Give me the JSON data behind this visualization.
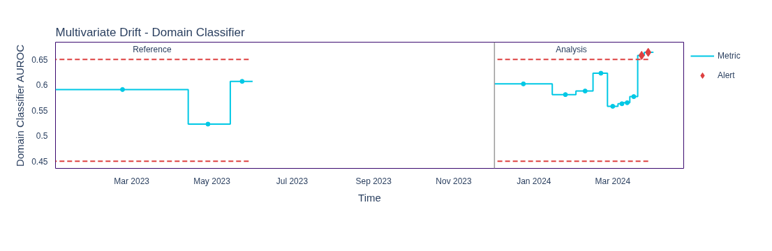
{
  "chart_data": {
    "type": "step",
    "title": "Multivariate Drift - Domain Classifier",
    "xlabel": "Time",
    "ylabel": "Domain Classifier AUROC",
    "xlim": [
      "2023-01-02",
      "2024-04-24"
    ],
    "ylim": [
      0.436,
      0.684
    ],
    "xticks": [
      {
        "value": "2023-03-01",
        "label": "Mar 2023"
      },
      {
        "value": "2023-05-01",
        "label": "May 2023"
      },
      {
        "value": "2023-07-01",
        "label": "Jul 2023"
      },
      {
        "value": "2023-09-01",
        "label": "Sep 2023"
      },
      {
        "value": "2023-11-01",
        "label": "Nov 2023"
      },
      {
        "value": "2024-01-01",
        "label": "Jan 2024"
      },
      {
        "value": "2024-03-01",
        "label": "Mar 2024"
      }
    ],
    "yticks": [
      0.45,
      0.5,
      0.55,
      0.6,
      0.65
    ],
    "grid": false,
    "legend": "top right",
    "series": [
      {
        "name": "Metric",
        "color": "#00c8e5",
        "marker": "none",
        "line_style": "solid",
        "x": [
          "2023-01-02",
          "2023-04-13",
          "2023-05-15",
          "2023-06-01",
          "2023-09-01",
          "2023-12-02",
          "2024-01-15",
          "2024-02-02",
          "2024-02-15",
          "2024-02-26",
          "2024-03-05",
          "2024-03-09",
          "2024-03-14",
          "2024-03-20",
          "2024-03-25",
          "2024-04-01"
        ],
        "values": [
          0.591,
          0.523,
          0.607,
          0.607,
          null,
          0.602,
          0.581,
          0.588,
          0.623,
          0.558,
          0.563,
          0.565,
          0.577,
          0.658,
          0.664,
          0.664
        ]
      },
      {
        "type": "scatter",
        "color": "#00c8e5",
        "marker": "circle",
        "x": [
          "2023-02-22",
          "2023-04-28",
          "2023-05-24",
          "2023-12-24",
          "2024-01-25",
          "2024-02-09",
          "2024-02-21",
          "2024-03-01",
          "2024-03-08",
          "2024-03-12",
          "2024-03-17"
        ],
        "values": [
          0.591,
          0.523,
          0.607,
          0.602,
          0.581,
          0.588,
          0.623,
          0.558,
          0.563,
          0.565,
          0.577
        ]
      },
      {
        "name": "Alert",
        "type": "scatter",
        "color": "#dd4040",
        "marker": "diamond",
        "x": [
          "2024-03-23",
          "2024-03-28"
        ],
        "values": [
          0.658,
          0.664
        ]
      },
      {
        "type": "line",
        "color": "#dd4040",
        "marker": "none",
        "line_style": "dashed",
        "x": [
          "2023-01-02",
          "2023-05-29",
          "2023-09-01",
          "2023-12-02",
          "2024-03-28"
        ],
        "values": [
          0.65,
          0.65,
          null,
          0.65,
          0.65
        ]
      },
      {
        "type": "line",
        "color": "#dd4040",
        "marker": "none",
        "line_style": "dashed",
        "x": [
          "2023-01-02",
          "2023-05-29",
          "2023-09-01",
          "2023-12-02",
          "2024-03-28"
        ],
        "values": [
          0.45,
          0.45,
          null,
          0.45,
          0.45
        ]
      }
    ],
    "ref_lines": [
      {
        "axis": "x",
        "value": "2023-12-02",
        "color": "#999999",
        "line_style": "solid"
      }
    ],
    "annotations": [
      "Reference",
      "Analysis"
    ]
  }
}
